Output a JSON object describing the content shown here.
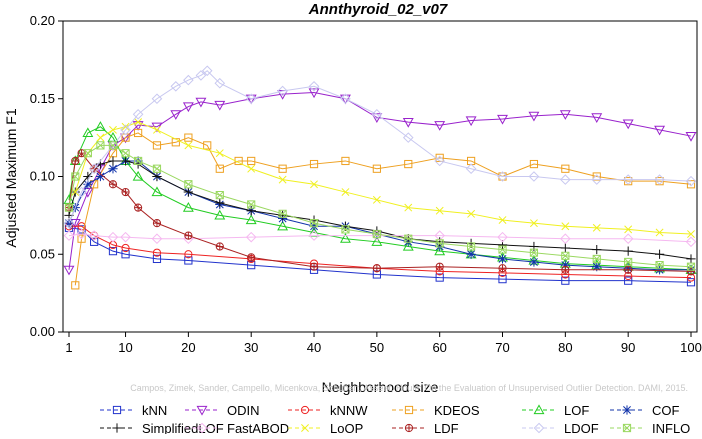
{
  "chart_data": {
    "type": "line",
    "title": "Annthyroid_02_v07",
    "xlabel": "Neighborhood size",
    "ylabel": "Adjusted Maximum F1",
    "xlim": [
      1,
      100
    ],
    "ylim": [
      0,
      0.2
    ],
    "x_ticks": [
      1,
      10,
      20,
      30,
      40,
      50,
      60,
      70,
      80,
      90,
      100
    ],
    "y_ticks": [
      "0.00",
      "0.05",
      "0.10",
      "0.15",
      "0.20"
    ],
    "grid": false,
    "legend_position": "bottom",
    "watermark": "Campos, Zimek, Sander, Campello, Micenkova, Schubert, Assent, Houle: On the Evaluation of Unsupervised Outlier Detection. DAMI, 2015.",
    "series": [
      {
        "name": "kNN",
        "color": "#2233cc",
        "marker": "square",
        "k": [
          1,
          3,
          5,
          8,
          10,
          15,
          20,
          30,
          40,
          50,
          60,
          70,
          80,
          90,
          100
        ],
        "values": [
          0.067,
          0.066,
          0.058,
          0.052,
          0.05,
          0.047,
          0.046,
          0.043,
          0.04,
          0.037,
          0.035,
          0.034,
          0.033,
          0.033,
          0.032
        ]
      },
      {
        "name": "ODIN",
        "color": "#9922cc",
        "marker": "triangle-down",
        "k": [
          1,
          2,
          4,
          6,
          8,
          10,
          12,
          15,
          18,
          20,
          22,
          25,
          30,
          35,
          40,
          45,
          50,
          55,
          60,
          65,
          70,
          75,
          80,
          85,
          90,
          95,
          100
        ],
        "values": [
          0.04,
          0.07,
          0.09,
          0.105,
          0.12,
          0.125,
          0.133,
          0.132,
          0.14,
          0.145,
          0.148,
          0.146,
          0.15,
          0.153,
          0.154,
          0.15,
          0.138,
          0.135,
          0.133,
          0.136,
          0.137,
          0.139,
          0.14,
          0.138,
          0.134,
          0.13,
          0.126
        ]
      },
      {
        "name": "kNNW",
        "color": "#ee2222",
        "marker": "circle",
        "k": [
          1,
          3,
          5,
          8,
          10,
          15,
          20,
          30,
          40,
          50,
          60,
          70,
          80,
          90,
          100
        ],
        "values": [
          0.068,
          0.068,
          0.062,
          0.056,
          0.054,
          0.051,
          0.05,
          0.047,
          0.044,
          0.041,
          0.039,
          0.038,
          0.037,
          0.036,
          0.035
        ]
      },
      {
        "name": "KDEOS",
        "color": "#eea020",
        "marker": "square",
        "k": [
          2,
          3,
          5,
          8,
          10,
          12,
          15,
          18,
          20,
          23,
          25,
          28,
          30,
          35,
          40,
          45,
          50,
          55,
          60,
          65,
          70,
          75,
          80,
          85,
          90,
          95,
          100
        ],
        "values": [
          0.03,
          0.06,
          0.095,
          0.115,
          0.125,
          0.128,
          0.12,
          0.122,
          0.125,
          0.12,
          0.105,
          0.11,
          0.11,
          0.105,
          0.108,
          0.11,
          0.105,
          0.108,
          0.112,
          0.11,
          0.1,
          0.108,
          0.105,
          0.1,
          0.097,
          0.097,
          0.095
        ]
      },
      {
        "name": "LOF",
        "color": "#22cc22",
        "marker": "triangle-up",
        "k": [
          1,
          2,
          4,
          6,
          8,
          10,
          12,
          15,
          20,
          25,
          30,
          35,
          40,
          45,
          50,
          55,
          60,
          65,
          70,
          75,
          80,
          85,
          90,
          95,
          100
        ],
        "values": [
          0.085,
          0.11,
          0.128,
          0.132,
          0.125,
          0.11,
          0.1,
          0.09,
          0.08,
          0.075,
          0.072,
          0.068,
          0.064,
          0.06,
          0.058,
          0.055,
          0.052,
          0.05,
          0.048,
          0.046,
          0.044,
          0.043,
          0.042,
          0.041,
          0.04
        ]
      },
      {
        "name": "COF",
        "color": "#1133aa",
        "marker": "star",
        "k": [
          1,
          2,
          4,
          6,
          8,
          10,
          12,
          15,
          20,
          25,
          30,
          35,
          40,
          45,
          50,
          55,
          60,
          65,
          70,
          75,
          80,
          85,
          90,
          95,
          100
        ],
        "values": [
          0.07,
          0.08,
          0.095,
          0.1,
          0.105,
          0.11,
          0.11,
          0.1,
          0.09,
          0.082,
          0.078,
          0.073,
          0.068,
          0.068,
          0.063,
          0.058,
          0.055,
          0.05,
          0.047,
          0.045,
          0.043,
          0.042,
          0.041,
          0.04,
          0.04
        ]
      },
      {
        "name": "SimplifiedLOF",
        "color": "#111111",
        "marker": "plus",
        "k": [
          1,
          2,
          4,
          6,
          8,
          10,
          12,
          15,
          20,
          25,
          30,
          35,
          40,
          45,
          50,
          55,
          60,
          65,
          70,
          75,
          80,
          85,
          90,
          95,
          100
        ],
        "values": [
          0.075,
          0.09,
          0.1,
          0.108,
          0.11,
          0.11,
          0.108,
          0.1,
          0.09,
          0.083,
          0.078,
          0.075,
          0.072,
          0.068,
          0.065,
          0.06,
          0.058,
          0.057,
          0.056,
          0.055,
          0.054,
          0.053,
          0.052,
          0.05,
          0.047
        ]
      },
      {
        "name": "FastABOD",
        "color": "#f5b8f0",
        "marker": "diamond",
        "k": [
          1,
          3,
          5,
          8,
          10,
          15,
          20,
          30,
          40,
          50,
          60,
          70,
          80,
          90,
          100
        ],
        "values": [
          0.062,
          0.063,
          0.062,
          0.061,
          0.061,
          0.06,
          0.06,
          0.061,
          0.062,
          0.062,
          0.062,
          0.061,
          0.06,
          0.06,
          0.058
        ]
      },
      {
        "name": "LoOP",
        "color": "#f0f020",
        "marker": "x",
        "k": [
          2,
          4,
          6,
          8,
          10,
          12,
          15,
          20,
          25,
          30,
          35,
          40,
          45,
          50,
          55,
          60,
          65,
          70,
          75,
          80,
          85,
          90,
          95,
          100
        ],
        "values": [
          0.09,
          0.115,
          0.125,
          0.13,
          0.132,
          0.135,
          0.13,
          0.12,
          0.115,
          0.105,
          0.098,
          0.095,
          0.09,
          0.085,
          0.08,
          0.078,
          0.076,
          0.072,
          0.07,
          0.068,
          0.067,
          0.066,
          0.064,
          0.063
        ]
      },
      {
        "name": "LDF",
        "color": "#aa2222",
        "marker": "circle-plus",
        "k": [
          1,
          2,
          3,
          5,
          8,
          10,
          12,
          15,
          20,
          25,
          30,
          40,
          50,
          60,
          70,
          80,
          90,
          100
        ],
        "values": [
          0.08,
          0.11,
          0.115,
          0.105,
          0.095,
          0.09,
          0.08,
          0.07,
          0.062,
          0.055,
          0.048,
          0.042,
          0.041,
          0.042,
          0.041,
          0.04,
          0.04,
          0.039
        ]
      },
      {
        "name": "LDOF",
        "color": "#c8c8f0",
        "marker": "diamond",
        "k": [
          1,
          3,
          5,
          8,
          10,
          12,
          15,
          18,
          20,
          22,
          23,
          25,
          30,
          35,
          40,
          45,
          50,
          55,
          60,
          65,
          70,
          75,
          80,
          85,
          90,
          95,
          100
        ],
        "values": [
          0.07,
          0.09,
          0.105,
          0.12,
          0.13,
          0.14,
          0.15,
          0.158,
          0.162,
          0.165,
          0.168,
          0.16,
          0.15,
          0.155,
          0.158,
          0.15,
          0.14,
          0.125,
          0.11,
          0.105,
          0.1,
          0.1,
          0.098,
          0.098,
          0.098,
          0.098,
          0.097
        ]
      },
      {
        "name": "INFLO",
        "color": "#9ad860",
        "marker": "square-x",
        "k": [
          1,
          2,
          4,
          6,
          8,
          10,
          12,
          15,
          20,
          25,
          30,
          35,
          40,
          45,
          50,
          55,
          60,
          65,
          70,
          75,
          80,
          85,
          90,
          95,
          100
        ],
        "values": [
          0.08,
          0.1,
          0.115,
          0.12,
          0.12,
          0.115,
          0.11,
          0.105,
          0.095,
          0.088,
          0.082,
          0.076,
          0.07,
          0.066,
          0.063,
          0.06,
          0.057,
          0.055,
          0.053,
          0.051,
          0.049,
          0.047,
          0.045,
          0.043,
          0.042
        ]
      }
    ]
  }
}
